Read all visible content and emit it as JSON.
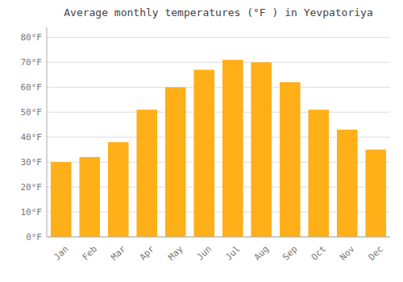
{
  "chart_data": {
    "type": "bar",
    "title": "Average monthly temperatures (°F ) in Yevpatoriya",
    "categories": [
      "Jan",
      "Feb",
      "Mar",
      "Apr",
      "May",
      "Jun",
      "Jul",
      "Aug",
      "Sep",
      "Oct",
      "Nov",
      "Dec"
    ],
    "values": [
      30,
      32,
      38,
      51,
      60,
      67,
      71,
      70,
      62,
      51,
      43,
      35
    ],
    "color": "#FFAF18",
    "ylim": [
      0,
      84
    ],
    "yticks": [
      {
        "value": 0,
        "label": "0°F"
      },
      {
        "value": 10,
        "label": "10°F"
      },
      {
        "value": 20,
        "label": "20°F"
      },
      {
        "value": 30,
        "label": "30°F"
      },
      {
        "value": 40,
        "label": "40°F"
      },
      {
        "value": 50,
        "label": "50°F"
      },
      {
        "value": 60,
        "label": "60°F"
      },
      {
        "value": 70,
        "label": "70°F"
      },
      {
        "value": 80,
        "label": "80°F"
      }
    ],
    "grid": true
  }
}
